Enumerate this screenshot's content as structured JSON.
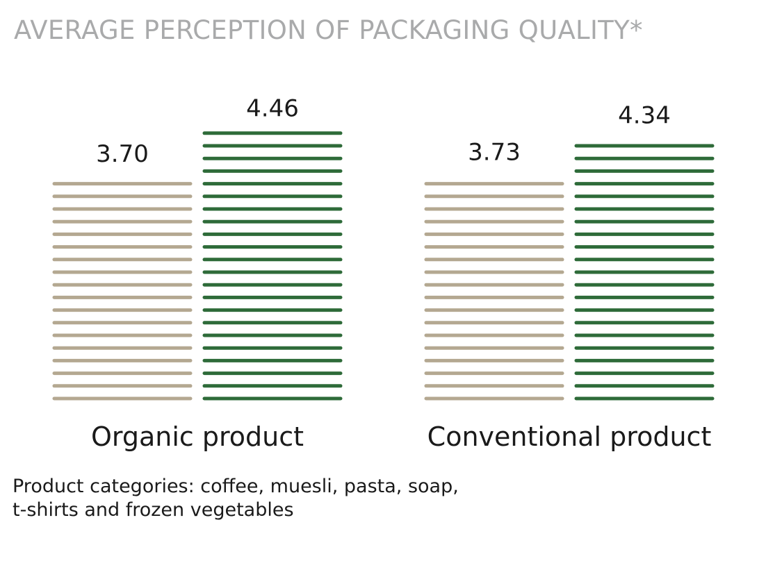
{
  "chart_data": {
    "type": "bar",
    "title": "AVERAGE PERCEPTION OF PACKAGING QUALITY*",
    "categories": [
      "Organic product",
      "Conventional product"
    ],
    "series": [
      {
        "values": [
          3.7,
          3.73
        ],
        "labels": [
          "3.70",
          "3.73"
        ],
        "color": "#b4a891"
      },
      {
        "values": [
          4.46,
          4.34
        ],
        "labels": [
          "4.46",
          "4.34"
        ],
        "color": "#2e6b39"
      }
    ],
    "xlabel": "",
    "ylabel": "",
    "grid": false,
    "bar_style": "horizontal stripes"
  },
  "footnote": {
    "line1": "Product categories: coffee, muesli, pasta, soap,",
    "line2": "t-shirts and frozen vegetables"
  }
}
